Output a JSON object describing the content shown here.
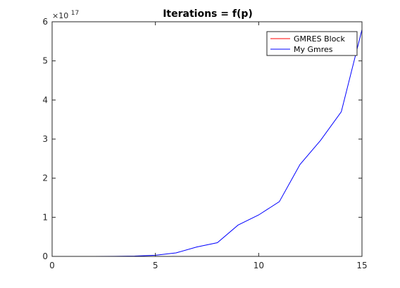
{
  "chart_data": {
    "type": "line",
    "title": "Iterations = f(p)",
    "xlabel": "",
    "ylabel": "",
    "xlim": [
      0,
      15
    ],
    "ylim": [
      0,
      6
    ],
    "y_multiplier": "×10",
    "y_exponent": "17",
    "xticks": [
      0,
      5,
      10,
      15
    ],
    "yticks": [
      0,
      1,
      2,
      3,
      4,
      5,
      6
    ],
    "grid": false,
    "legend_position": "top-right",
    "x": [
      1,
      2,
      3,
      4,
      5,
      6,
      7,
      8,
      9,
      10,
      11,
      12,
      13,
      14,
      15
    ],
    "series": [
      {
        "name": "GMRES Block",
        "color": "#ff0000",
        "values": [
          0,
          0,
          0,
          0,
          0,
          0,
          0,
          0,
          0,
          0,
          0,
          0,
          0,
          0,
          0
        ]
      },
      {
        "name": "My Gmres",
        "color": "#0000ff",
        "values": [
          0,
          0,
          0.003,
          0.01,
          0.03,
          0.09,
          0.24,
          0.35,
          0.8,
          1.06,
          1.4,
          2.35,
          2.97,
          3.7,
          5.8
        ]
      }
    ]
  }
}
